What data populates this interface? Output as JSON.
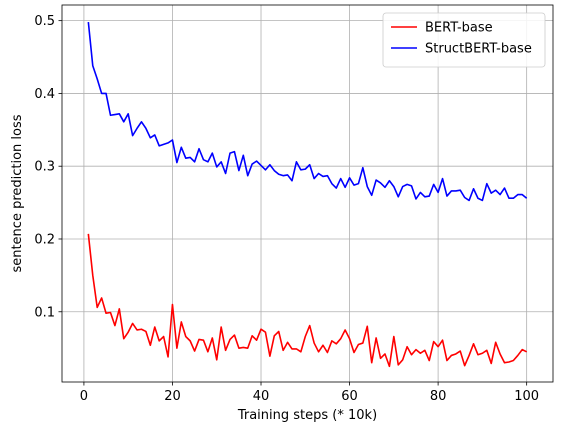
{
  "chart_data": {
    "type": "line",
    "title": "",
    "xlabel": "Training steps (* 10k)",
    "ylabel": "sentence prediction loss",
    "xlim": [
      -4.95,
      105.95
    ],
    "ylim": [
      0.0035,
      0.5215
    ],
    "xticks": [
      0,
      20,
      40,
      60,
      80,
      100
    ],
    "xtick_labels": [
      "0",
      "20",
      "40",
      "60",
      "80",
      "100"
    ],
    "yticks": [
      0.1,
      0.2,
      0.3,
      0.4,
      0.5
    ],
    "ytick_labels": [
      "0.1",
      "0.2",
      "0.3",
      "0.4",
      "0.5"
    ],
    "grid": true,
    "legend_position": "top-right",
    "x": [
      1,
      2,
      3,
      4,
      5,
      6,
      7,
      8,
      9,
      10,
      11,
      12,
      13,
      14,
      15,
      16,
      17,
      18,
      19,
      20,
      21,
      22,
      23,
      24,
      25,
      26,
      27,
      28,
      29,
      30,
      31,
      32,
      33,
      34,
      35,
      36,
      37,
      38,
      39,
      40,
      41,
      42,
      43,
      44,
      45,
      46,
      47,
      48,
      49,
      50,
      51,
      52,
      53,
      54,
      55,
      56,
      57,
      58,
      59,
      60,
      61,
      62,
      63,
      64,
      65,
      66,
      67,
      68,
      69,
      70,
      71,
      72,
      73,
      74,
      75,
      76,
      77,
      78,
      79,
      80,
      81,
      82,
      83,
      84,
      85,
      86,
      87,
      88,
      89,
      90,
      91,
      92,
      93,
      94,
      95,
      96,
      97,
      98,
      99,
      100
    ],
    "series": [
      {
        "name": "BERT-base",
        "color": "#ff0000",
        "values": [
          0.207,
          0.15,
          0.106,
          0.119,
          0.098,
          0.099,
          0.081,
          0.104,
          0.063,
          0.072,
          0.084,
          0.075,
          0.076,
          0.073,
          0.054,
          0.079,
          0.06,
          0.066,
          0.038,
          0.11,
          0.05,
          0.086,
          0.066,
          0.06,
          0.046,
          0.062,
          0.061,
          0.045,
          0.064,
          0.034,
          0.079,
          0.047,
          0.062,
          0.068,
          0.05,
          0.051,
          0.05,
          0.067,
          0.061,
          0.076,
          0.072,
          0.039,
          0.067,
          0.073,
          0.047,
          0.058,
          0.049,
          0.049,
          0.045,
          0.066,
          0.081,
          0.057,
          0.045,
          0.054,
          0.044,
          0.06,
          0.056,
          0.063,
          0.075,
          0.063,
          0.044,
          0.055,
          0.057,
          0.08,
          0.03,
          0.064,
          0.036,
          0.042,
          0.025,
          0.066,
          0.027,
          0.034,
          0.052,
          0.041,
          0.048,
          0.043,
          0.047,
          0.033,
          0.059,
          0.052,
          0.061,
          0.033,
          0.04,
          0.042,
          0.046,
          0.026,
          0.04,
          0.056,
          0.041,
          0.043,
          0.047,
          0.029,
          0.058,
          0.042,
          0.03,
          0.031,
          0.033,
          0.04,
          0.048,
          0.045
        ]
      },
      {
        "name": "StructBERT-base",
        "color": "#0000ff",
        "values": [
          0.498,
          0.438,
          0.42,
          0.4,
          0.4,
          0.37,
          0.371,
          0.372,
          0.361,
          0.372,
          0.342,
          0.352,
          0.361,
          0.352,
          0.339,
          0.343,
          0.328,
          0.33,
          0.332,
          0.336,
          0.305,
          0.326,
          0.311,
          0.312,
          0.306,
          0.324,
          0.309,
          0.306,
          0.318,
          0.299,
          0.306,
          0.29,
          0.318,
          0.32,
          0.294,
          0.315,
          0.287,
          0.303,
          0.307,
          0.301,
          0.295,
          0.302,
          0.294,
          0.289,
          0.287,
          0.288,
          0.28,
          0.306,
          0.295,
          0.296,
          0.302,
          0.283,
          0.29,
          0.286,
          0.287,
          0.276,
          0.27,
          0.283,
          0.271,
          0.284,
          0.274,
          0.276,
          0.298,
          0.272,
          0.26,
          0.281,
          0.277,
          0.271,
          0.28,
          0.272,
          0.258,
          0.272,
          0.275,
          0.273,
          0.255,
          0.264,
          0.258,
          0.259,
          0.275,
          0.264,
          0.283,
          0.259,
          0.266,
          0.266,
          0.267,
          0.257,
          0.253,
          0.269,
          0.256,
          0.253,
          0.276,
          0.263,
          0.267,
          0.261,
          0.27,
          0.256,
          0.256,
          0.261,
          0.261,
          0.256
        ]
      }
    ]
  }
}
